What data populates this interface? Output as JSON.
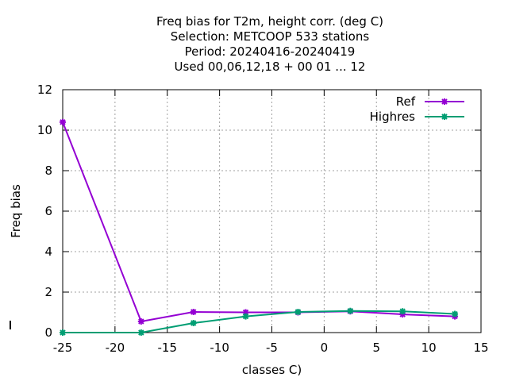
{
  "chart_data": {
    "type": "line",
    "title_lines": [
      "Freq bias  for T2m, height corr. (deg C)",
      "Selection: METCOOP     533 stations",
      "Period: 20240416-20240419",
      "Used  00,06,12,18 + 00 01 ... 12"
    ],
    "xlabel": "classes C)",
    "ylabel": "Freq bias",
    "xlim": [
      -25,
      15
    ],
    "ylim": [
      0,
      12
    ],
    "xticks": [
      -25,
      -20,
      -15,
      -10,
      -5,
      0,
      5,
      10,
      15
    ],
    "yticks": [
      0,
      2,
      4,
      6,
      8,
      10,
      12
    ],
    "grid": true,
    "legend_position": "top-right",
    "series": [
      {
        "name": "Ref",
        "color": "#9400d3",
        "marker": "star",
        "x": [
          -25,
          -17.5,
          -12.5,
          -7.5,
          -2.5,
          2.5,
          7.5,
          12.5
        ],
        "y": [
          10.4,
          0.55,
          1.02,
          1.0,
          1.0,
          1.05,
          0.9,
          0.8
        ]
      },
      {
        "name": "Highres",
        "color": "#009e73",
        "marker": "star",
        "x": [
          -25,
          -17.5,
          -12.5,
          -7.5,
          -2.5,
          2.5,
          7.5,
          12.5
        ],
        "y": [
          0.0,
          0.0,
          0.47,
          0.8,
          1.02,
          1.07,
          1.05,
          0.92
        ]
      }
    ]
  }
}
